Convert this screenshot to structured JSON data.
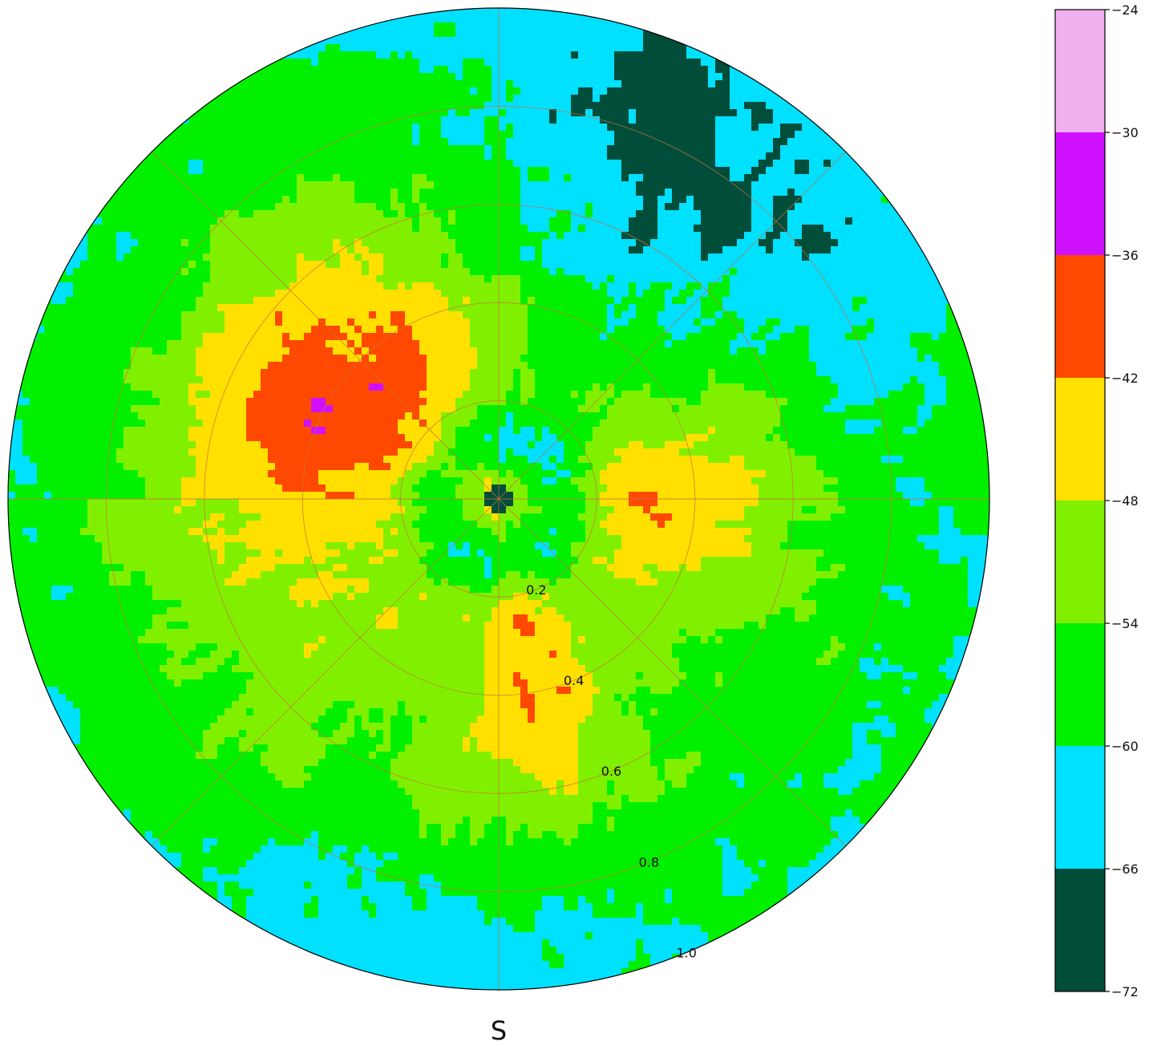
{
  "chart_data": {
    "type": "heatmap",
    "projection": "polar",
    "direction_label": "S",
    "radial_ticks": [
      "0.2",
      "0.4",
      "0.6",
      "0.8",
      "1.0"
    ],
    "radial_tick_values": [
      0.2,
      0.4,
      0.6,
      0.8,
      1.0
    ],
    "rlim": [
      0,
      1.0
    ],
    "grid": true,
    "grid_color": "#c8743c",
    "colorbar": {
      "ticks": [
        "-24",
        "-30",
        "-36",
        "-42",
        "-48",
        "-54",
        "-60",
        "-66",
        "-72"
      ],
      "tick_values": [
        -24,
        -30,
        -36,
        -42,
        -48,
        -54,
        -60,
        -66,
        -72
      ],
      "range": [
        -72,
        -24
      ],
      "levels": [
        {
          "min": -72,
          "max": -66,
          "color": "#004d3a"
        },
        {
          "min": -66,
          "max": -60,
          "color": "#00e0ff"
        },
        {
          "min": -60,
          "max": -54,
          "color": "#00f000"
        },
        {
          "min": -54,
          "max": -48,
          "color": "#80f000"
        },
        {
          "min": -48,
          "max": -42,
          "color": "#ffe000"
        },
        {
          "min": -42,
          "max": -36,
          "color": "#ff4800"
        },
        {
          "min": -36,
          "max": -30,
          "color": "#d010ff"
        },
        {
          "min": -30,
          "max": -24,
          "color": "#f0b0f0"
        }
      ]
    }
  }
}
